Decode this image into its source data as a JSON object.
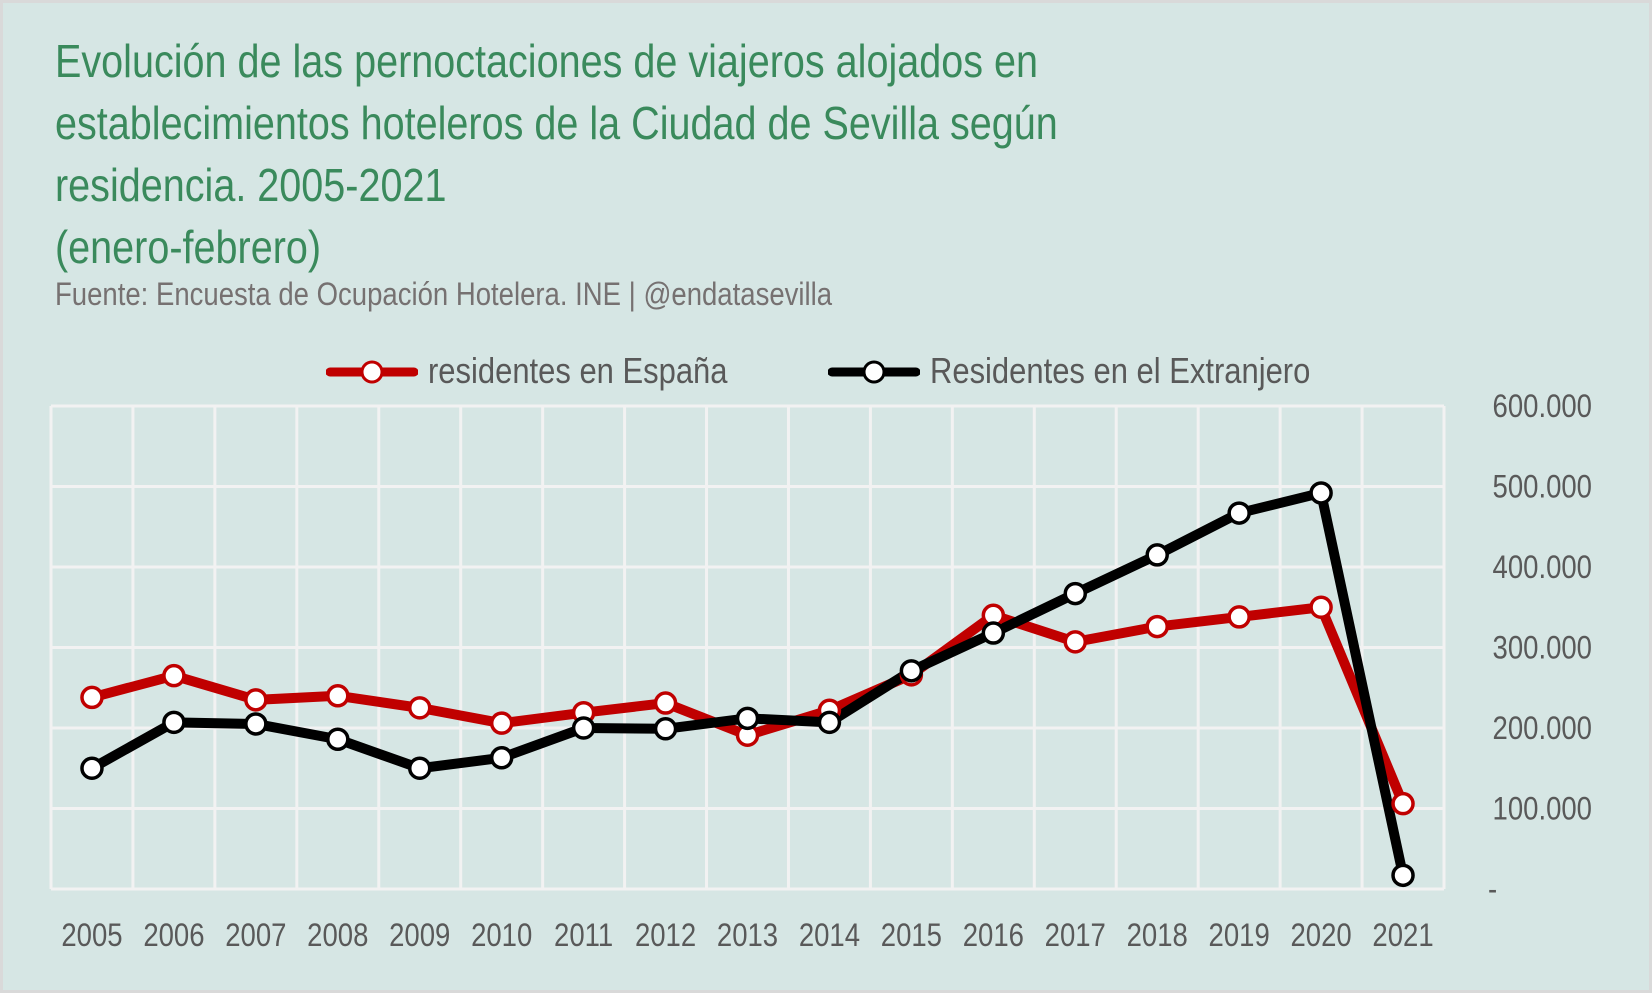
{
  "chart_data": {
    "type": "line",
    "title": "Evolución de las pernoctaciones de viajeros alojados en establecimientos hoteleros de la Ciudad de Sevilla según residencia. 2005-2021 (enero-febrero)",
    "title_lines": [
      "Evolución de las pernoctaciones de viajeros alojados en",
      "establecimientos hoteleros de la Ciudad de Sevilla según",
      "residencia. 2005-2021",
      "(enero-febrero)"
    ],
    "subtitle": "Fuente: Encuesta de Ocupación Hotelera. INE | @endatasevilla",
    "xlabel": "",
    "ylabel": "",
    "x": [
      "2005",
      "2006",
      "2007",
      "2008",
      "2009",
      "2010",
      "2011",
      "2012",
      "2013",
      "2014",
      "2015",
      "2016",
      "2017",
      "2018",
      "2019",
      "2020",
      "2021"
    ],
    "ylim": [
      0,
      600000
    ],
    "yticks": [
      0,
      100000,
      200000,
      300000,
      400000,
      500000,
      600000
    ],
    "ytick_labels": [
      "-",
      "100.000",
      "200.000",
      "300.000",
      "400.000",
      "500.000",
      "600.000"
    ],
    "y_axis_side": "right",
    "grid": true,
    "legend_position": "top",
    "series": [
      {
        "name": "residentes en España",
        "color": "#c00000",
        "values": [
          238000,
          265000,
          235000,
          240000,
          225000,
          206000,
          219000,
          231000,
          191000,
          222000,
          266000,
          340000,
          307000,
          326000,
          338000,
          350000,
          106000
        ]
      },
      {
        "name": "Residentes en el Extranjero",
        "color": "#000000",
        "values": [
          150000,
          207000,
          205000,
          186000,
          150000,
          163000,
          200000,
          199000,
          212000,
          207000,
          271000,
          318000,
          367000,
          415000,
          467000,
          492000,
          17000
        ]
      }
    ]
  }
}
